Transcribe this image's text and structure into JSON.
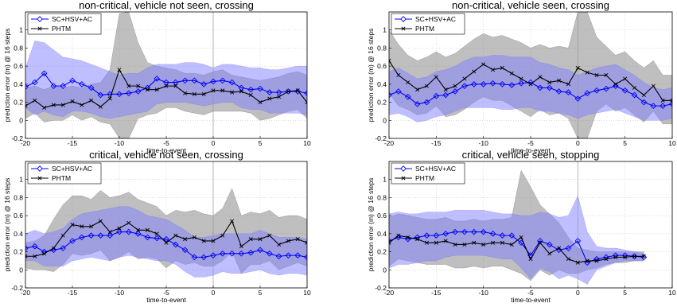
{
  "chart_data": [
    {
      "type": "line",
      "title": "non-critical, vehicle not seen, crossing",
      "xlabel": "time-to-event",
      "ylabel": "prediction error (m) @ 16 steps",
      "xlim": [
        -20,
        10
      ],
      "ylim": [
        -0.2,
        1.2
      ],
      "xticks": [
        -20,
        -15,
        -10,
        -5,
        0,
        5,
        10
      ],
      "yticks": [
        -0.2,
        0,
        0.2,
        0.4,
        0.6,
        0.8,
        1
      ],
      "grid": true,
      "legend": "top-left",
      "vline_x": 0,
      "x": [
        -20,
        -19,
        -18,
        -17,
        -16,
        -15,
        -14,
        -13,
        -12,
        -11,
        -10,
        -9,
        -8,
        -7,
        -6,
        -5,
        -4,
        -3,
        -2,
        -1,
        0,
        1,
        2,
        3,
        4,
        5,
        6,
        7,
        8,
        9,
        10
      ],
      "series": [
        {
          "name": "SC+HSV+AC",
          "color": "#0000ff",
          "marker": "diamond",
          "values": [
            0.37,
            0.42,
            0.52,
            0.38,
            0.38,
            0.44,
            0.4,
            0.36,
            0.28,
            0.29,
            0.29,
            0.3,
            0.32,
            0.36,
            0.46,
            0.42,
            0.42,
            0.44,
            0.44,
            0.4,
            0.43,
            0.44,
            0.42,
            0.36,
            0.34,
            0.35,
            0.31,
            0.31,
            0.32,
            0.32,
            0.3
          ],
          "upper": [
            0.58,
            0.88,
            0.86,
            0.78,
            0.7,
            0.68,
            0.66,
            0.62,
            0.58,
            0.54,
            0.5,
            0.52,
            0.52,
            0.58,
            0.62,
            0.62,
            0.62,
            0.64,
            0.64,
            0.62,
            0.58,
            0.62,
            0.62,
            0.6,
            0.58,
            0.58,
            0.56,
            0.56,
            0.58,
            0.6,
            0.6
          ],
          "lower": [
            0.14,
            0.06,
            0.1,
            0.06,
            0.04,
            0.1,
            0.1,
            0.08,
            0.04,
            0.02,
            0.04,
            0.06,
            0.08,
            0.1,
            0.18,
            0.2,
            0.2,
            0.2,
            0.18,
            0.16,
            0.18,
            0.2,
            0.2,
            0.14,
            0.12,
            0.12,
            0.08,
            0.08,
            0.08,
            0.08,
            0.06
          ]
        },
        {
          "name": "PHTM",
          "color": "#000000",
          "marker": "x",
          "values": [
            0.16,
            0.22,
            0.14,
            0.17,
            0.17,
            0.21,
            0.17,
            0.22,
            0.15,
            0.24,
            0.56,
            0.38,
            0.38,
            0.34,
            0.34,
            0.38,
            0.38,
            0.3,
            0.29,
            0.29,
            0.33,
            0.33,
            0.31,
            0.32,
            0.28,
            0.2,
            0.24,
            0.26,
            0.32,
            0.33,
            0.2
          ],
          "upper": [
            0.36,
            0.38,
            0.34,
            0.38,
            0.36,
            0.38,
            0.36,
            0.4,
            0.42,
            0.56,
            1.18,
            1.2,
            0.86,
            0.64,
            0.6,
            0.58,
            0.56,
            0.52,
            0.52,
            0.5,
            0.54,
            0.56,
            0.5,
            0.48,
            0.46,
            0.44,
            0.46,
            0.48,
            0.52,
            0.54,
            0.5
          ],
          "lower": [
            0.02,
            0.08,
            -0.02,
            0.0,
            0.0,
            0.06,
            0.0,
            0.04,
            -0.02,
            -0.04,
            -0.2,
            -0.2,
            0.02,
            0.06,
            0.08,
            0.14,
            0.14,
            0.1,
            0.08,
            0.06,
            0.1,
            0.1,
            0.1,
            0.1,
            0.08,
            0.0,
            0.02,
            0.06,
            0.1,
            0.12,
            0.02
          ]
        }
      ]
    },
    {
      "type": "line",
      "title": "non-critical, vehicle seen, crossing",
      "xlabel": "time-to-event",
      "ylabel": "prediction error (m) @ 16 steps",
      "xlim": [
        -20,
        10
      ],
      "ylim": [
        -0.2,
        1.2
      ],
      "xticks": [
        -20,
        -15,
        -10,
        -5,
        0,
        5,
        10
      ],
      "yticks": [
        -0.2,
        0,
        0.2,
        0.4,
        0.6,
        0.8,
        1
      ],
      "grid": true,
      "legend": "top-left",
      "vline_x": 0,
      "x": [
        -20,
        -19,
        -18,
        -17,
        -16,
        -15,
        -14,
        -13,
        -12,
        -11,
        -10,
        -9,
        -8,
        -7,
        -6,
        -5,
        -4,
        -3,
        -2,
        -1,
        0,
        1,
        2,
        3,
        4,
        5,
        6,
        7,
        8,
        9,
        10
      ],
      "series": [
        {
          "name": "SC+HSV+AC",
          "color": "#0000ff",
          "marker": "diamond",
          "values": [
            0.28,
            0.32,
            0.26,
            0.18,
            0.2,
            0.27,
            0.28,
            0.32,
            0.38,
            0.4,
            0.4,
            0.41,
            0.4,
            0.39,
            0.41,
            0.42,
            0.36,
            0.36,
            0.32,
            0.31,
            0.24,
            0.3,
            0.33,
            0.35,
            0.38,
            0.33,
            0.28,
            0.2,
            0.16,
            0.16,
            0.18
          ],
          "upper": [
            0.54,
            0.58,
            0.52,
            0.46,
            0.48,
            0.54,
            0.56,
            0.6,
            0.66,
            0.7,
            0.7,
            0.72,
            0.72,
            0.7,
            0.7,
            0.7,
            0.64,
            0.62,
            0.58,
            0.56,
            0.5,
            0.54,
            0.58,
            0.6,
            0.62,
            0.56,
            0.5,
            0.42,
            0.36,
            0.34,
            0.36
          ],
          "lower": [
            0.06,
            0.08,
            0.04,
            -0.02,
            0.0,
            0.04,
            0.06,
            0.1,
            0.14,
            0.14,
            0.14,
            0.14,
            0.12,
            0.12,
            0.14,
            0.14,
            0.1,
            0.1,
            0.08,
            0.06,
            0.02,
            0.06,
            0.08,
            0.1,
            0.12,
            0.08,
            0.04,
            0.0,
            0.0,
            0.0,
            0.02
          ]
        },
        {
          "name": "PHTM",
          "color": "#000000",
          "marker": "x",
          "values": [
            0.66,
            0.5,
            0.42,
            0.34,
            0.38,
            0.48,
            0.34,
            0.38,
            0.46,
            0.54,
            0.62,
            0.56,
            0.58,
            0.52,
            0.46,
            0.4,
            0.48,
            0.42,
            0.44,
            0.4,
            0.58,
            0.53,
            0.5,
            0.5,
            0.4,
            0.46,
            0.36,
            0.28,
            0.38,
            0.22,
            0.22
          ],
          "upper": [
            1.0,
            0.84,
            0.72,
            0.66,
            0.7,
            0.76,
            0.7,
            0.74,
            0.82,
            0.9,
            0.96,
            0.92,
            0.94,
            0.9,
            0.86,
            0.8,
            0.84,
            0.8,
            0.82,
            0.8,
            1.2,
            1.2,
            0.92,
            0.82,
            0.72,
            0.76,
            0.66,
            0.58,
            0.66,
            0.5,
            0.5
          ],
          "lower": [
            0.3,
            0.16,
            0.12,
            0.06,
            0.08,
            0.16,
            0.04,
            0.06,
            0.12,
            0.2,
            0.26,
            0.22,
            0.22,
            0.16,
            0.1,
            0.04,
            0.12,
            0.06,
            0.08,
            0.02,
            -0.2,
            -0.2,
            0.1,
            0.18,
            0.1,
            0.14,
            0.06,
            -0.02,
            0.1,
            -0.04,
            -0.04
          ]
        }
      ]
    },
    {
      "type": "line",
      "title": "critical, vehicle not seen, crossing",
      "xlabel": "time-to-event",
      "ylabel": "prediction error (m) @ 16 steps",
      "xlim": [
        -20,
        10
      ],
      "ylim": [
        -0.2,
        1.2
      ],
      "xticks": [
        -20,
        -15,
        -10,
        -5,
        0,
        5,
        10
      ],
      "yticks": [
        -0.2,
        0,
        0.2,
        0.4,
        0.6,
        0.8,
        1
      ],
      "grid": true,
      "legend": "top-left",
      "vline_x": 0,
      "x": [
        -20,
        -19,
        -18,
        -17,
        -16,
        -15,
        -14,
        -13,
        -12,
        -11,
        -10,
        -9,
        -8,
        -7,
        -6,
        -5,
        -4,
        -3,
        -2,
        -1,
        0,
        1,
        2,
        3,
        4,
        5,
        6,
        7,
        8,
        9,
        10
      ],
      "series": [
        {
          "name": "SC+HSV+AC",
          "color": "#0000ff",
          "marker": "diamond",
          "values": [
            0.24,
            0.26,
            0.2,
            0.22,
            0.24,
            0.32,
            0.36,
            0.38,
            0.38,
            0.38,
            0.42,
            0.42,
            0.4,
            0.36,
            0.35,
            0.34,
            0.28,
            0.22,
            0.14,
            0.14,
            0.16,
            0.18,
            0.18,
            0.18,
            0.19,
            0.22,
            0.18,
            0.15,
            0.16,
            0.16,
            0.14
          ],
          "upper": [
            0.4,
            0.44,
            0.4,
            0.42,
            0.46,
            0.56,
            0.62,
            0.64,
            0.66,
            0.68,
            0.7,
            0.7,
            0.66,
            0.6,
            0.58,
            0.56,
            0.5,
            0.44,
            0.36,
            0.36,
            0.38,
            0.4,
            0.4,
            0.4,
            0.4,
            0.44,
            0.4,
            0.36,
            0.36,
            0.36,
            0.34
          ],
          "lower": [
            0.1,
            0.1,
            0.04,
            0.04,
            0.04,
            0.1,
            0.12,
            0.14,
            0.12,
            0.1,
            0.14,
            0.16,
            0.14,
            0.12,
            0.1,
            0.1,
            0.06,
            -0.02,
            -0.08,
            -0.08,
            -0.06,
            -0.02,
            -0.04,
            -0.04,
            -0.02,
            0.0,
            -0.04,
            -0.06,
            -0.04,
            -0.04,
            -0.06
          ]
        },
        {
          "name": "PHTM",
          "color": "#000000",
          "marker": "x",
          "values": [
            0.15,
            0.15,
            0.18,
            0.24,
            0.38,
            0.5,
            0.48,
            0.48,
            0.54,
            0.42,
            0.46,
            0.52,
            0.44,
            0.44,
            0.4,
            0.3,
            0.38,
            0.34,
            0.36,
            0.32,
            0.32,
            0.38,
            0.54,
            0.26,
            0.34,
            0.34,
            0.38,
            0.28,
            0.32,
            0.34,
            0.3
          ],
          "upper": [
            0.3,
            0.32,
            0.38,
            0.56,
            0.72,
            0.82,
            0.82,
            0.78,
            0.88,
            0.8,
            0.82,
            0.86,
            0.78,
            0.74,
            0.7,
            0.6,
            0.66,
            0.64,
            0.66,
            0.62,
            0.6,
            0.68,
            0.9,
            0.6,
            0.64,
            0.62,
            0.66,
            0.58,
            0.6,
            0.6,
            0.56
          ],
          "lower": [
            0.02,
            0.0,
            0.0,
            -0.02,
            0.06,
            0.18,
            0.16,
            0.18,
            0.22,
            0.1,
            0.14,
            0.2,
            0.12,
            0.14,
            0.12,
            0.02,
            0.1,
            0.06,
            0.08,
            0.04,
            0.04,
            0.1,
            0.2,
            -0.04,
            0.06,
            0.06,
            0.1,
            0.0,
            0.04,
            0.08,
            0.04
          ]
        }
      ]
    },
    {
      "type": "line",
      "title": "critical, vehicle seen, stopping",
      "xlabel": "time-to-event",
      "ylabel": "prediction error (m) @ 16 steps",
      "xlim": [
        -20,
        10
      ],
      "ylim": [
        -0.2,
        1.2
      ],
      "xticks": [
        -20,
        -15,
        -10,
        -5,
        0,
        5,
        10
      ],
      "yticks": [
        -0.2,
        0,
        0.2,
        0.4,
        0.6,
        0.8,
        1
      ],
      "grid": true,
      "legend": "top-left",
      "vline_x": 0,
      "x": [
        -20,
        -19,
        -18,
        -17,
        -16,
        -15,
        -14,
        -13,
        -12,
        -11,
        -10,
        -9,
        -8,
        -7,
        -6,
        -5,
        -4,
        -3,
        -2,
        -1,
        0,
        1,
        2,
        3,
        4,
        5,
        6,
        7
      ],
      "series": [
        {
          "name": "SC+HSV+AC",
          "color": "#0000ff",
          "marker": "diamond",
          "values": [
            0.32,
            0.36,
            0.34,
            0.36,
            0.38,
            0.38,
            0.4,
            0.42,
            0.42,
            0.42,
            0.42,
            0.4,
            0.38,
            0.38,
            0.3,
            0.16,
            0.32,
            0.28,
            0.22,
            0.24,
            0.32,
            0.08,
            0.12,
            0.14,
            0.16,
            0.16,
            0.15,
            0.14
          ],
          "upper": [
            0.62,
            0.64,
            0.62,
            0.62,
            0.64,
            0.64,
            0.64,
            0.66,
            0.66,
            0.66,
            0.66,
            0.64,
            0.62,
            0.62,
            0.6,
            0.6,
            0.64,
            0.62,
            0.58,
            0.6,
            0.82,
            0.42,
            0.26,
            0.24,
            0.24,
            0.22,
            0.2,
            0.18
          ],
          "lower": [
            0.02,
            0.06,
            0.06,
            0.08,
            0.1,
            0.1,
            0.14,
            0.16,
            0.16,
            0.16,
            0.16,
            0.14,
            0.12,
            0.12,
            0.02,
            -0.1,
            0.02,
            -0.02,
            -0.1,
            -0.06,
            -0.1,
            -0.16,
            0.0,
            0.04,
            0.08,
            0.1,
            0.1,
            0.1
          ]
        },
        {
          "name": "PHTM",
          "color": "#000000",
          "marker": "x",
          "values": [
            0.3,
            0.38,
            0.36,
            0.34,
            0.3,
            0.3,
            0.32,
            0.28,
            0.28,
            0.3,
            0.28,
            0.3,
            0.3,
            0.28,
            0.36,
            0.12,
            0.3,
            0.18,
            0.24,
            0.12,
            0.08,
            0.1,
            0.1,
            0.12,
            0.14,
            0.14,
            0.15,
            0.15
          ],
          "upper": [
            0.58,
            0.62,
            0.6,
            0.58,
            0.56,
            0.56,
            0.58,
            0.54,
            0.54,
            0.56,
            0.54,
            0.56,
            0.56,
            0.58,
            1.1,
            0.92,
            0.72,
            0.62,
            0.52,
            0.36,
            0.24,
            0.22,
            0.2,
            0.2,
            0.2,
            0.2,
            0.2,
            0.2
          ],
          "lower": [
            0.04,
            0.12,
            0.1,
            0.08,
            0.06,
            0.06,
            0.06,
            0.02,
            0.02,
            0.04,
            0.02,
            0.04,
            0.04,
            0.0,
            -0.04,
            -0.12,
            0.0,
            -0.06,
            0.0,
            -0.04,
            -0.04,
            0.0,
            0.02,
            0.06,
            0.08,
            0.08,
            0.1,
            0.1
          ]
        }
      ]
    }
  ]
}
